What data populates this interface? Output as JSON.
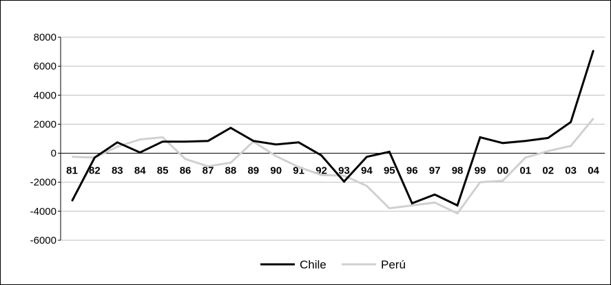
{
  "chart_data": {
    "type": "line",
    "title": "",
    "xlabel": "",
    "ylabel": "",
    "categories": [
      "81",
      "82",
      "83",
      "84",
      "85",
      "86",
      "87",
      "88",
      "89",
      "90",
      "91",
      "92",
      "93",
      "94",
      "95",
      "96",
      "97",
      "98",
      "99",
      "00",
      "01",
      "02",
      "03",
      "04"
    ],
    "ylim": [
      -6000,
      8000
    ],
    "yticks": [
      -6000,
      -4000,
      -2000,
      0,
      2000,
      4000,
      6000,
      8000
    ],
    "grid": true,
    "legend_position": "bottom",
    "series": [
      {
        "name": "Chile",
        "color": "#000000",
        "values": [
          -3300,
          -300,
          750,
          50,
          800,
          800,
          850,
          1750,
          850,
          600,
          750,
          -150,
          -1950,
          -250,
          100,
          -3450,
          -2850,
          -3600,
          1100,
          700,
          850,
          1050,
          2150,
          7100
        ]
      },
      {
        "name": "Perú",
        "color": "#d0d0d0",
        "values": [
          -250,
          -300,
          450,
          950,
          1100,
          -400,
          -900,
          -650,
          800,
          -200,
          -950,
          -1500,
          -1550,
          -2250,
          -3800,
          -3600,
          -3400,
          -4150,
          -2000,
          -1900,
          -300,
          150,
          500,
          2400
        ]
      }
    ]
  }
}
